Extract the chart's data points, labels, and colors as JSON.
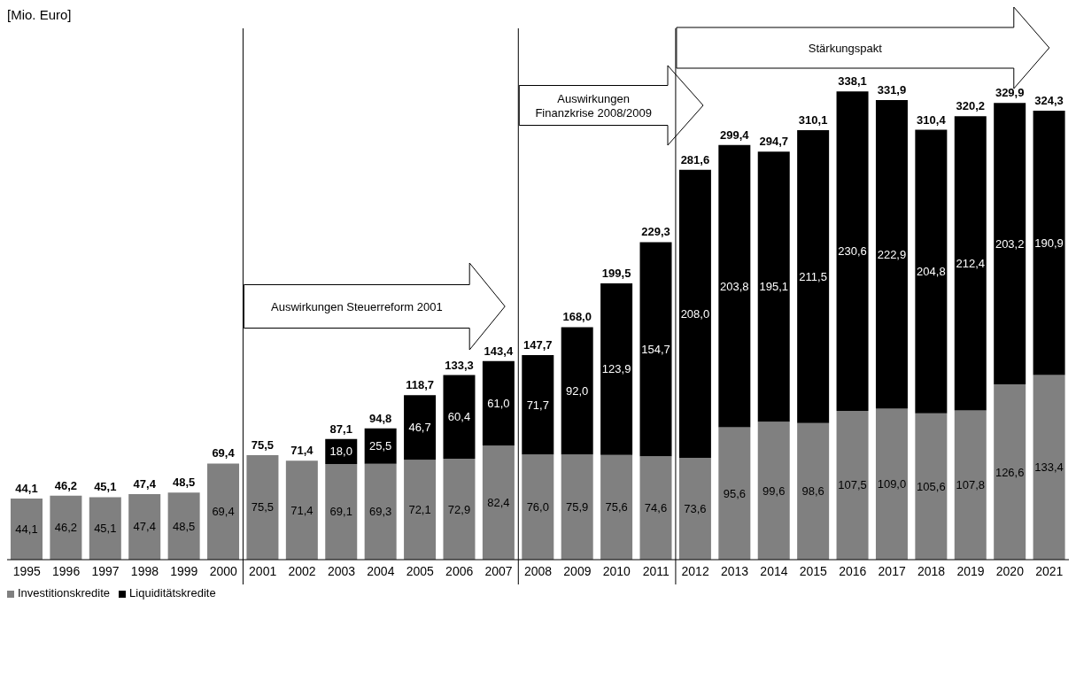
{
  "chart_data": {
    "type": "bar",
    "subtitle": "[Mio. Euro]",
    "stacked": true,
    "legend": "bottom left",
    "categories": [
      "1995",
      "1996",
      "1997",
      "1998",
      "1999",
      "2000",
      "2001",
      "2002",
      "2003",
      "2004",
      "2005",
      "2006",
      "2007",
      "2008",
      "2009",
      "2010",
      "2011",
      "2012",
      "2013",
      "2014",
      "2015",
      "2016",
      "2017",
      "2018",
      "2019",
      "2020",
      "2021"
    ],
    "series": [
      {
        "name": "Investitionskredite",
        "color": "#808080",
        "values": [
          44.1,
          46.2,
          45.1,
          47.4,
          48.5,
          69.4,
          75.5,
          71.4,
          69.1,
          69.3,
          72.1,
          72.9,
          82.4,
          76.0,
          75.9,
          75.6,
          74.6,
          73.6,
          95.6,
          99.6,
          98.6,
          107.5,
          109.0,
          105.6,
          107.8,
          126.6,
          133.4
        ],
        "value_labels": [
          "44,1",
          "46,2",
          "45,1",
          "47,4",
          "48,5",
          "69,4",
          "75,5",
          "71,4",
          "69,1",
          "69,3",
          "72,1",
          "72,9",
          "82,4",
          "76,0",
          "75,9",
          "75,6",
          "74,6",
          "73,6",
          "95,6",
          "99,6",
          "98,6",
          "107,5",
          "109,0",
          "105,6",
          "107,8",
          "126,6",
          "133,4"
        ]
      },
      {
        "name": "Liquiditätskredite",
        "color": "#000000",
        "values": [
          null,
          null,
          null,
          null,
          null,
          null,
          null,
          null,
          18.0,
          25.5,
          46.7,
          60.4,
          61.0,
          71.7,
          92.0,
          123.9,
          154.7,
          208.0,
          203.8,
          195.1,
          211.5,
          230.6,
          222.9,
          204.8,
          212.4,
          203.2,
          190.9
        ],
        "value_labels": [
          null,
          null,
          null,
          null,
          null,
          null,
          null,
          null,
          "18,0",
          "25,5",
          "46,7",
          "60,4",
          "61,0",
          "71,7",
          "92,0",
          "123,9",
          "154,7",
          "208,0",
          "203,8",
          "195,1",
          "211,5",
          "230,6",
          "222,9",
          "204,8",
          "212,4",
          "203,2",
          "190,9"
        ]
      }
    ],
    "totals": [
      "44,1",
      "46,2",
      "45,1",
      "47,4",
      "48,5",
      "69,4",
      "75,5",
      "71,4",
      "87,1",
      "94,8",
      "118,7",
      "133,3",
      "143,4",
      "147,7",
      "168,0",
      "199,5",
      "229,3",
      "281,6",
      "299,4",
      "294,7",
      "310,1",
      "338,1",
      "331,9",
      "310,4",
      "320,2",
      "329,9",
      "324,3"
    ],
    "annotations": [
      "Auswirkungen Steuerreform 2001",
      "Auswirkungen\nFinanzkrise 2008/2009",
      "Stärkungspakt"
    ]
  }
}
